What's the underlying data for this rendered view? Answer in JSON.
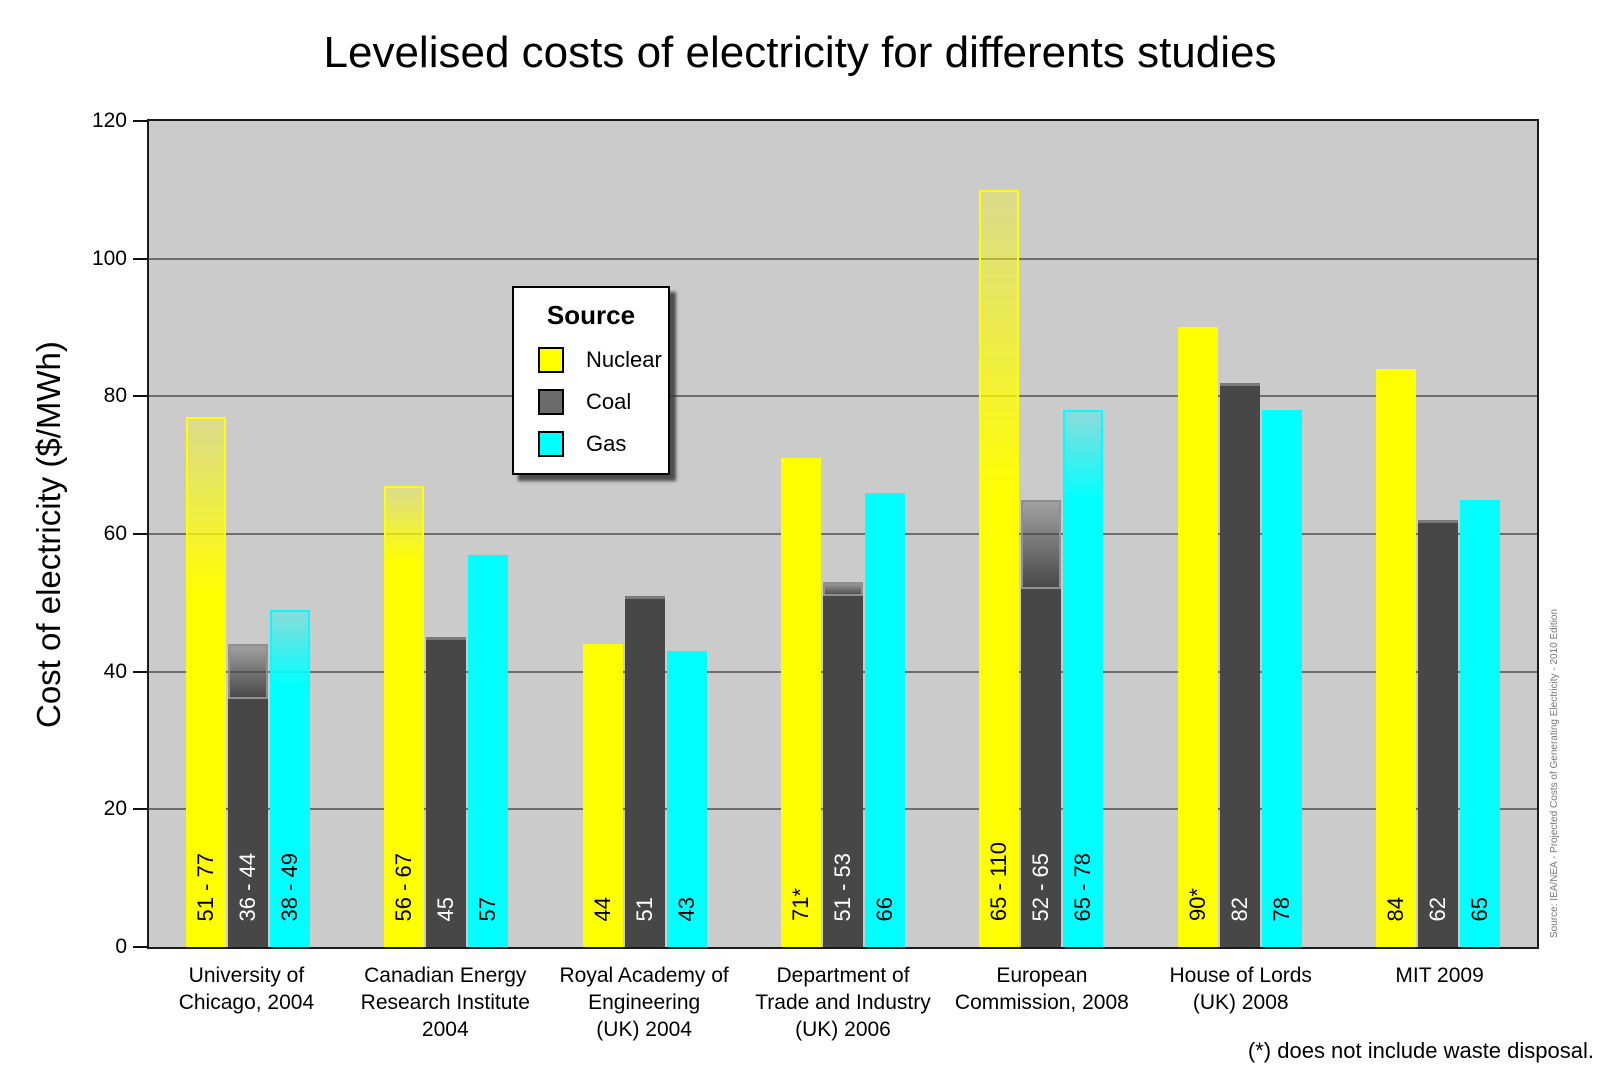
{
  "title": "Levelised costs of electricity for differents studies",
  "y_axis": {
    "label": "Cost of electricity ($/MWh)",
    "ticks": [
      0,
      20,
      40,
      60,
      80,
      100,
      120
    ],
    "max": 120
  },
  "legend": {
    "title": "Source",
    "items": [
      {
        "label": "Nuclear",
        "color": "#FFFF00"
      },
      {
        "label": "Coal",
        "color": "#6b6b6b"
      },
      {
        "label": "Gas",
        "color": "#00FFFF"
      }
    ]
  },
  "footnote": "(*) does not include waste disposal.",
  "source_note": "Source: IEA/NEA - Projected Costs of Generating Electricity - 2010 Edition",
  "chart_data": {
    "type": "bar",
    "title": "Levelised costs of electricity for differents studies",
    "ylabel": "Cost of electricity ($/MWh)",
    "ylim": [
      0,
      120
    ],
    "yticks": [
      0,
      20,
      40,
      60,
      80,
      100,
      120
    ],
    "grid": "horizontal",
    "legend_position": "top-left",
    "plot_background": "#cbcbcb",
    "sources": {
      "nuclear": {
        "label": "Nuclear",
        "color": "#FFFF00",
        "fade_color": "rgba(255,255,0,0.30)",
        "range_border": "#FFFF00",
        "label_color": "#000000"
      },
      "coal": {
        "label": "Coal",
        "color": "#474747",
        "fade_color": "rgba(70,70,70,0.30)",
        "range_border": "#909090",
        "label_color": "#FFFFFF"
      },
      "gas": {
        "label": "Gas",
        "color": "#00FFFF",
        "fade_color": "rgba(0,255,255,0.30)",
        "range_border": "#00FFFF",
        "label_color": "#000000"
      }
    },
    "groups": [
      {
        "label": "University of Chicago, 2004",
        "label_lines": [
          "University of",
          "Chicago, 2004"
        ],
        "bars": [
          {
            "source": "nuclear",
            "min": 51,
            "max": 77,
            "label": "51 - 77"
          },
          {
            "source": "coal",
            "min": 36,
            "max": 44,
            "label": "36 - 44"
          },
          {
            "source": "gas",
            "min": 38,
            "max": 49,
            "label": "38 - 49"
          }
        ]
      },
      {
        "label": "Canadian Energy Research Institute 2004",
        "label_lines": [
          "Canadian Energy",
          "Research Institute",
          "2004"
        ],
        "bars": [
          {
            "source": "nuclear",
            "min": 56,
            "max": 67,
            "label": "56 - 67"
          },
          {
            "source": "coal",
            "min": 45,
            "max": 45,
            "label": "45"
          },
          {
            "source": "gas",
            "min": 57,
            "max": 57,
            "label": "57"
          }
        ]
      },
      {
        "label": "Royal Academy of Engineering (UK) 2004",
        "label_lines": [
          "Royal Academy of",
          "Engineering",
          "(UK) 2004"
        ],
        "bars": [
          {
            "source": "nuclear",
            "min": 44,
            "max": 44,
            "label": "44"
          },
          {
            "source": "coal",
            "min": 51,
            "max": 51,
            "label": "51"
          },
          {
            "source": "gas",
            "min": 43,
            "max": 43,
            "label": "43"
          }
        ]
      },
      {
        "label": "Department of Trade and Industry (UK) 2006",
        "label_lines": [
          "Department of",
          "Trade and Industry",
          "(UK) 2006"
        ],
        "bars": [
          {
            "source": "nuclear",
            "min": 71,
            "max": 71,
            "label": "71*"
          },
          {
            "source": "coal",
            "min": 51,
            "max": 53,
            "label": "51 - 53"
          },
          {
            "source": "gas",
            "min": 66,
            "max": 66,
            "label": "66"
          }
        ]
      },
      {
        "label": "European Commission, 2008",
        "label_lines": [
          "European",
          "Commission, 2008"
        ],
        "bars": [
          {
            "source": "nuclear",
            "min": 65,
            "max": 110,
            "label": "65 - 110"
          },
          {
            "source": "coal",
            "min": 52,
            "max": 65,
            "label": "52 - 65"
          },
          {
            "source": "gas",
            "min": 65,
            "max": 78,
            "label": "65 - 78"
          }
        ]
      },
      {
        "label": "House of Lords (UK) 2008",
        "label_lines": [
          "House of Lords",
          "(UK) 2008"
        ],
        "bars": [
          {
            "source": "nuclear",
            "min": 90,
            "max": 90,
            "label": "90*"
          },
          {
            "source": "coal",
            "min": 82,
            "max": 82,
            "label": "82"
          },
          {
            "source": "gas",
            "min": 78,
            "max": 78,
            "label": "78"
          }
        ]
      },
      {
        "label": "MIT 2009",
        "label_lines": [
          "MIT 2009"
        ],
        "bars": [
          {
            "source": "nuclear",
            "min": 84,
            "max": 84,
            "label": "84"
          },
          {
            "source": "coal",
            "min": 62,
            "max": 62,
            "label": "62"
          },
          {
            "source": "gas",
            "min": 65,
            "max": 65,
            "label": "65"
          }
        ]
      }
    ]
  }
}
